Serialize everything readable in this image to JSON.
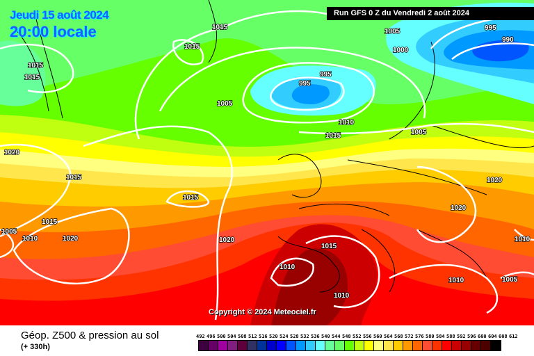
{
  "header": {
    "date": "Jeudi 15 août 2024",
    "time": "20:00 locale",
    "run": "Run GFS 0 Z du Vendredi 2 août 2024"
  },
  "copyright": "Copyright © 2024 Meteociel.fr",
  "footer": {
    "title": "Géop. Z500 & pression au sol",
    "lead": "(+ 330h)"
  },
  "legend": {
    "labels": [
      "492",
      "496",
      "500",
      "504",
      "508",
      "512",
      "516",
      "520",
      "524",
      "528",
      "532",
      "536",
      "540",
      "544",
      "548",
      "552",
      "556",
      "560",
      "564",
      "568",
      "572",
      "576",
      "580",
      "584",
      "588",
      "592",
      "596",
      "600",
      "604",
      "608",
      "612"
    ],
    "colors": [
      "#3f003f",
      "#660066",
      "#a000a0",
      "#821e82",
      "#5e003c",
      "#313164",
      "#003399",
      "#0000cc",
      "#0000ff",
      "#0055ff",
      "#0099ff",
      "#33ccff",
      "#66ffff",
      "#66ff99",
      "#66ff66",
      "#66ff00",
      "#c0ff10",
      "#ffff00",
      "#ffff80",
      "#ffe64d",
      "#ffcc00",
      "#ff9900",
      "#ff6600",
      "#ff4c33",
      "#ff3300",
      "#ff0000",
      "#cc0000",
      "#990000",
      "#660000",
      "#4c0000",
      "#000000"
    ]
  },
  "isobar_labels": [
    "1015",
    "1015",
    "1015",
    "1015",
    "1005",
    "995",
    "995",
    "1005",
    "1000",
    "995",
    "990",
    "1010",
    "1015",
    "1005",
    "1020",
    "1015",
    "1015",
    "1015",
    "1020",
    "1010",
    "1005",
    "1020",
    "1020",
    "1015",
    "1010",
    "1010",
    "1010",
    "1010",
    "1005",
    "1020"
  ]
}
